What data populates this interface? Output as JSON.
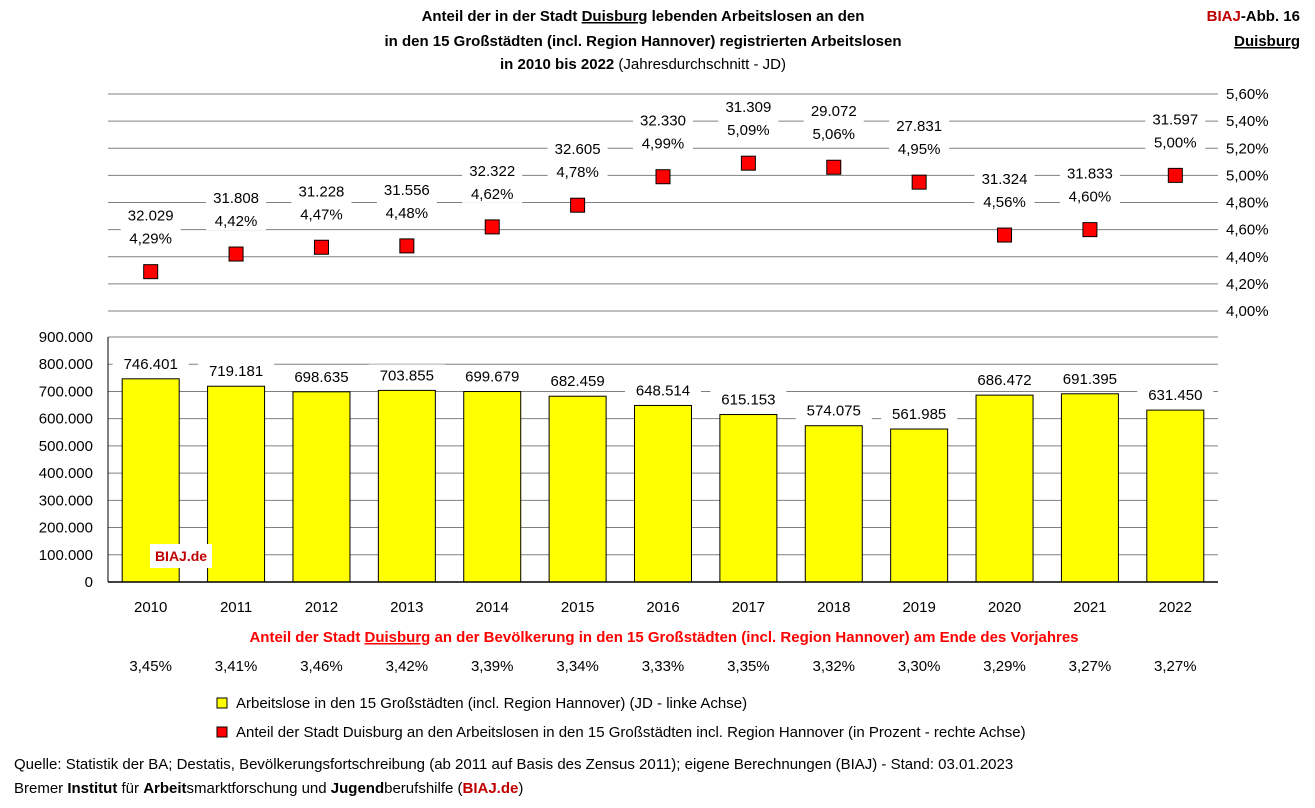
{
  "header": {
    "title_line1_a": "Anteil der in der Stadt ",
    "title_line1_city": "Duisburg",
    "title_line1_b": " lebenden Arbeitslosen an den",
    "title_line2": "in den 15 Großstädten (incl. Region Hannover) registrierten Arbeitslosen",
    "title_line3_bold": "in 2010 bis 2022",
    "title_line3_normal": " (Jahresdurchschnitt - JD)",
    "badge_biaj": "BIAJ",
    "badge_rest": "-Abb. 16",
    "badge_city": "Duisburg"
  },
  "watermark": "BIAJ.de",
  "population_share": {
    "label_a": "Anteil der Stadt ",
    "label_city": "Duisburg",
    "label_b": " an der Bevölkerung in den 15 Großstädten (incl. Region Hannover) am Ende des Vorjahres",
    "values": [
      "3,45%",
      "3,41%",
      "3,46%",
      "3,42%",
      "3,39%",
      "3,34%",
      "3,33%",
      "3,35%",
      "3,32%",
      "3,30%",
      "3,29%",
      "3,27%",
      "3,27%"
    ]
  },
  "legend": {
    "bars": "Arbeitslose in den 15 Großstädten (incl. Region Hannover) (JD - linke Achse)",
    "markers": "Anteil der Stadt Duisburg an den Arbeitslosen in den 15 Großstädten incl. Region Hannover (in Prozent - rechte Achse)"
  },
  "footer": {
    "source": "Quelle: Statistik der BA; Destatis, Bevölkerungsfortschreibung (ab 2011 auf Basis des Zensus 2011); eigene Berechnungen (BIAJ) - Stand: 03.01.2023",
    "inst_1": "Bremer ",
    "inst_2": "Institut",
    "inst_3": " für ",
    "inst_4": "Arbeit",
    "inst_5": "smarktforschung und ",
    "inst_6": "Jugend",
    "inst_7": "berufshilfe (",
    "inst_8": "BIAJ.de",
    "inst_9": ")"
  },
  "colors": {
    "bar": "#ffff00",
    "marker": "#ff0000",
    "accent_red": "#c00000",
    "grid": "#808080"
  },
  "chart_data": {
    "type": "bar",
    "categories": [
      "2010",
      "2011",
      "2012",
      "2013",
      "2014",
      "2015",
      "2016",
      "2017",
      "2018",
      "2019",
      "2020",
      "2021",
      "2022"
    ],
    "series": [
      {
        "name": "Arbeitslose in den 15 Großstädten (incl. Region Hannover) (JD - linke Achse)",
        "axis": "left",
        "type": "bar",
        "values": [
          746401,
          719181,
          698635,
          703855,
          699679,
          682459,
          648514,
          615153,
          574075,
          561985,
          686472,
          691395,
          631450
        ],
        "labels": [
          "746.401",
          "719.181",
          "698.635",
          "703.855",
          "699.679",
          "682.459",
          "648.514",
          "615.153",
          "574.075",
          "561.985",
          "686.472",
          "691.395",
          "631.450"
        ]
      },
      {
        "name": "Anteil der Stadt Duisburg an den Arbeitslosen in den 15 Großstädten incl. Region Hannover (in Prozent - rechte Achse)",
        "axis": "right",
        "type": "scatter",
        "values": [
          4.29,
          4.42,
          4.47,
          4.48,
          4.62,
          4.78,
          4.99,
          5.09,
          5.06,
          4.95,
          4.56,
          4.6,
          5.0
        ],
        "labels": [
          "4,29%",
          "4,42%",
          "4,47%",
          "4,48%",
          "4,62%",
          "4,78%",
          "4,99%",
          "5,09%",
          "5,06%",
          "4,95%",
          "4,56%",
          "4,60%",
          "5,00%"
        ],
        "count_labels": [
          "32.029",
          "31.808",
          "31.228",
          "31.556",
          "32.322",
          "32.605",
          "32.330",
          "31.309",
          "29.072",
          "27.831",
          "31.324",
          "31.833",
          "31.597"
        ]
      }
    ],
    "left_axis": {
      "ylim": [
        0,
        900000
      ],
      "ticks": [
        0,
        100000,
        200000,
        300000,
        400000,
        500000,
        600000,
        700000,
        800000,
        900000
      ],
      "tick_labels": [
        "0",
        "100.000",
        "200.000",
        "300.000",
        "400.000",
        "500.000",
        "600.000",
        "700.000",
        "800.000",
        "900.000"
      ]
    },
    "right_axis": {
      "ylim": [
        4.0,
        5.6
      ],
      "ticks": [
        4.0,
        4.2,
        4.4,
        4.6,
        4.8,
        5.0,
        5.2,
        5.4,
        5.6
      ],
      "tick_labels": [
        "4,00%",
        "4,20%",
        "4,40%",
        "4,60%",
        "4,80%",
        "5,00%",
        "5,20%",
        "5,40%",
        "5,60%"
      ]
    },
    "grid": true,
    "legend_position": "bottom"
  }
}
